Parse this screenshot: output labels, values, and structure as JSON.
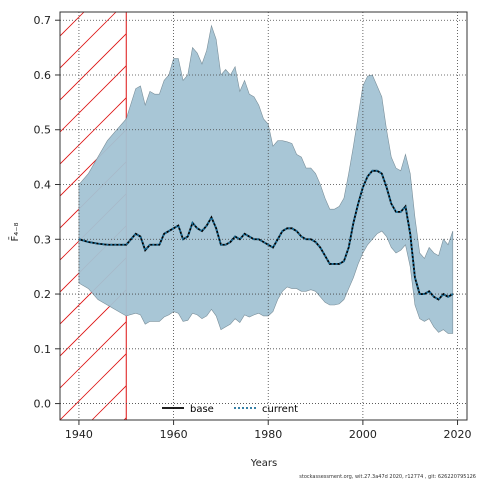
{
  "chart_data": {
    "type": "line",
    "ylabel": "F̄₄₋₈",
    "xlabel": "Years",
    "xlim": [
      1936,
      2022
    ],
    "ylim": [
      -0.03,
      0.715
    ],
    "xticks": [
      1940,
      1960,
      1980,
      2000,
      2020
    ],
    "yticks": [
      0.0,
      0.1,
      0.2,
      0.3,
      0.4,
      0.5,
      0.6,
      0.7
    ],
    "grid": true,
    "legend": {
      "placement": "bottom-center",
      "entries": [
        "base",
        "current"
      ]
    },
    "hatched_period": {
      "from": 1936,
      "to": 1950,
      "color": "#dd1111"
    },
    "band_color": "#a3c3d4",
    "band": {
      "x": [
        1940,
        1942,
        1944,
        1946,
        1948,
        1950,
        1952,
        1953,
        1954,
        1955,
        1956,
        1957,
        1958,
        1959,
        1960,
        1961,
        1962,
        1963,
        1964,
        1965,
        1966,
        1967,
        1968,
        1969,
        1970,
        1971,
        1972,
        1973,
        1974,
        1975,
        1976,
        1977,
        1978,
        1979,
        1980,
        1981,
        1982,
        1983,
        1984,
        1985,
        1986,
        1987,
        1988,
        1989,
        1990,
        1991,
        1992,
        1993,
        1994,
        1995,
        1996,
        1997,
        1998,
        1999,
        2000,
        2001,
        2002,
        2003,
        2004,
        2005,
        2006,
        2007,
        2008,
        2009,
        2010,
        2011,
        2012,
        2013,
        2014,
        2015,
        2016,
        2017,
        2018,
        2019
      ],
      "upper": [
        0.4,
        0.42,
        0.45,
        0.48,
        0.5,
        0.52,
        0.575,
        0.58,
        0.545,
        0.57,
        0.565,
        0.565,
        0.59,
        0.6,
        0.63,
        0.63,
        0.59,
        0.6,
        0.65,
        0.64,
        0.62,
        0.645,
        0.69,
        0.665,
        0.6,
        0.61,
        0.6,
        0.615,
        0.57,
        0.59,
        0.565,
        0.56,
        0.545,
        0.52,
        0.51,
        0.47,
        0.48,
        0.48,
        0.478,
        0.475,
        0.455,
        0.45,
        0.43,
        0.43,
        0.42,
        0.4,
        0.375,
        0.355,
        0.355,
        0.36,
        0.375,
        0.42,
        0.47,
        0.525,
        0.58,
        0.598,
        0.6,
        0.58,
        0.56,
        0.5,
        0.45,
        0.43,
        0.425,
        0.455,
        0.42,
        0.34,
        0.275,
        0.265,
        0.285,
        0.275,
        0.27,
        0.3,
        0.29,
        0.315
      ],
      "lower": [
        0.22,
        0.21,
        0.19,
        0.18,
        0.17,
        0.16,
        0.165,
        0.162,
        0.145,
        0.15,
        0.15,
        0.15,
        0.158,
        0.162,
        0.168,
        0.165,
        0.15,
        0.152,
        0.165,
        0.162,
        0.155,
        0.16,
        0.172,
        0.16,
        0.135,
        0.14,
        0.145,
        0.155,
        0.148,
        0.162,
        0.158,
        0.162,
        0.165,
        0.16,
        0.16,
        0.168,
        0.19,
        0.205,
        0.213,
        0.21,
        0.21,
        0.205,
        0.205,
        0.208,
        0.205,
        0.195,
        0.185,
        0.18,
        0.18,
        0.182,
        0.19,
        0.21,
        0.23,
        0.255,
        0.275,
        0.29,
        0.3,
        0.31,
        0.315,
        0.305,
        0.285,
        0.275,
        0.28,
        0.29,
        0.25,
        0.18,
        0.155,
        0.15,
        0.155,
        0.14,
        0.13,
        0.135,
        0.128,
        0.128
      ]
    },
    "series": [
      {
        "name": "base",
        "line": "solid",
        "color": "#000000",
        "x": [
          1940,
          1942,
          1944,
          1946,
          1948,
          1950,
          1952,
          1953,
          1954,
          1955,
          1956,
          1957,
          1958,
          1959,
          1960,
          1961,
          1962,
          1963,
          1964,
          1965,
          1966,
          1967,
          1968,
          1969,
          1970,
          1971,
          1972,
          1973,
          1974,
          1975,
          1976,
          1977,
          1978,
          1979,
          1980,
          1981,
          1982,
          1983,
          1984,
          1985,
          1986,
          1987,
          1988,
          1989,
          1990,
          1991,
          1992,
          1993,
          1994,
          1995,
          1996,
          1997,
          1998,
          1999,
          2000,
          2001,
          2002,
          2003,
          2004,
          2005,
          2006,
          2007,
          2008,
          2009,
          2010,
          2011,
          2012,
          2013,
          2014,
          2015,
          2016,
          2017,
          2018,
          2019
        ],
        "y": [
          0.3,
          0.295,
          0.292,
          0.29,
          0.29,
          0.29,
          0.31,
          0.305,
          0.28,
          0.29,
          0.29,
          0.29,
          0.31,
          0.315,
          0.32,
          0.325,
          0.3,
          0.305,
          0.33,
          0.32,
          0.315,
          0.325,
          0.34,
          0.32,
          0.29,
          0.29,
          0.295,
          0.305,
          0.3,
          0.31,
          0.305,
          0.3,
          0.3,
          0.295,
          0.29,
          0.285,
          0.3,
          0.315,
          0.32,
          0.32,
          0.315,
          0.305,
          0.3,
          0.3,
          0.295,
          0.285,
          0.27,
          0.255,
          0.255,
          0.255,
          0.26,
          0.285,
          0.33,
          0.365,
          0.395,
          0.415,
          0.425,
          0.425,
          0.42,
          0.395,
          0.365,
          0.35,
          0.35,
          0.36,
          0.31,
          0.23,
          0.2,
          0.2,
          0.205,
          0.195,
          0.19,
          0.2,
          0.195,
          0.2
        ]
      },
      {
        "name": "current",
        "line": "dotted",
        "color": "#1a6e99",
        "x": [
          1940,
          1942,
          1944,
          1946,
          1948,
          1950,
          1952,
          1953,
          1954,
          1955,
          1956,
          1957,
          1958,
          1959,
          1960,
          1961,
          1962,
          1963,
          1964,
          1965,
          1966,
          1967,
          1968,
          1969,
          1970,
          1971,
          1972,
          1973,
          1974,
          1975,
          1976,
          1977,
          1978,
          1979,
          1980,
          1981,
          1982,
          1983,
          1984,
          1985,
          1986,
          1987,
          1988,
          1989,
          1990,
          1991,
          1992,
          1993,
          1994,
          1995,
          1996,
          1997,
          1998,
          1999,
          2000,
          2001,
          2002,
          2003,
          2004,
          2005,
          2006,
          2007,
          2008,
          2009,
          2010,
          2011,
          2012,
          2013,
          2014,
          2015,
          2016,
          2017,
          2018,
          2019
        ],
        "y": [
          0.3,
          0.295,
          0.292,
          0.29,
          0.29,
          0.29,
          0.31,
          0.305,
          0.28,
          0.29,
          0.29,
          0.29,
          0.31,
          0.315,
          0.32,
          0.325,
          0.3,
          0.305,
          0.33,
          0.32,
          0.315,
          0.325,
          0.34,
          0.32,
          0.29,
          0.29,
          0.295,
          0.305,
          0.3,
          0.31,
          0.305,
          0.3,
          0.3,
          0.295,
          0.29,
          0.285,
          0.3,
          0.315,
          0.32,
          0.32,
          0.315,
          0.305,
          0.3,
          0.3,
          0.295,
          0.285,
          0.27,
          0.255,
          0.255,
          0.255,
          0.26,
          0.285,
          0.33,
          0.365,
          0.395,
          0.415,
          0.425,
          0.425,
          0.42,
          0.395,
          0.365,
          0.35,
          0.35,
          0.36,
          0.31,
          0.23,
          0.2,
          0.2,
          0.205,
          0.195,
          0.19,
          0.2,
          0.195,
          0.2
        ]
      }
    ]
  },
  "footer": "stockassessment.org, wit.27.3a47d   2020, r12774 , git: 626220795126"
}
